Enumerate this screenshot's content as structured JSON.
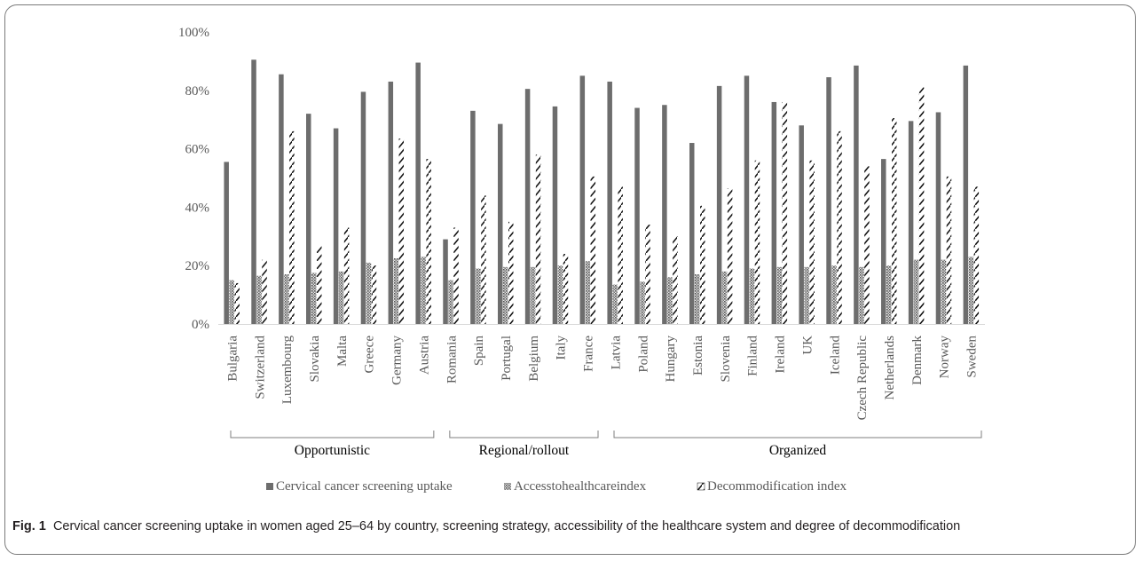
{
  "chart_data": {
    "type": "bar",
    "title": "",
    "xlabel": "",
    "ylabel": "",
    "ylim": [
      0,
      100
    ],
    "y_ticks": [
      "0%",
      "20%",
      "40%",
      "60%",
      "80%",
      "100%"
    ],
    "grid": false,
    "legend_position": "bottom",
    "categories": [
      "Bulgaria",
      "Switzerland",
      "Luxembourg",
      "Slovakia",
      "Malta",
      "Greece",
      "Germany",
      "Austria",
      "Romania",
      "Spain",
      "Portugal",
      "Belgium",
      "Italy",
      "France",
      "Latvia",
      "Poland",
      "Hungary",
      "Estonia",
      "Slovenia",
      "Finland",
      "Ireland",
      "UK",
      "Iceland",
      "Czech Republic",
      "Netherlands",
      "Denmark",
      "Norway",
      "Sweden"
    ],
    "series": [
      {
        "name": "Cervical cancer screening uptake",
        "color": "#6d6d6d",
        "values": [
          55.5,
          90.5,
          85.5,
          72,
          67,
          79.5,
          83,
          89.5,
          29,
          73,
          68.5,
          80.5,
          74.5,
          85,
          83,
          74,
          75,
          62,
          81.5,
          85,
          76,
          68,
          84.5,
          88.5,
          56.5,
          69.5,
          72.5,
          88.5
        ]
      },
      {
        "name": "Accesstohealthcareindex",
        "color": "#8a8a8a",
        "values": [
          15,
          16.5,
          17,
          17.5,
          18,
          21,
          22.5,
          23,
          15,
          19,
          19.5,
          19.5,
          20,
          21.5,
          13.5,
          14.5,
          16,
          17,
          18,
          19,
          19.5,
          19.5,
          20,
          19.5,
          20,
          22,
          22,
          23
        ]
      },
      {
        "name": "Decommodification index",
        "color": "#111111",
        "values": [
          14,
          22,
          66,
          27,
          33,
          20,
          63.5,
          56.5,
          33,
          44,
          35,
          58,
          24,
          50.5,
          47,
          34,
          30,
          40.5,
          46.5,
          56,
          76,
          56,
          66,
          54,
          70.5,
          81,
          50.5,
          47
        ]
      }
    ],
    "groups": [
      {
        "label": "Opportunistic",
        "first": 0,
        "last": 7
      },
      {
        "label": "Regional/rollout",
        "first": 8,
        "last": 13
      },
      {
        "label": "Organized",
        "first": 14,
        "last": 27
      }
    ]
  },
  "caption": {
    "label": "Fig. 1",
    "text": "Cervical cancer screening uptake in women aged 25–64 by country, screening strategy, accessibility of the healthcare system and degree of decommodification"
  }
}
